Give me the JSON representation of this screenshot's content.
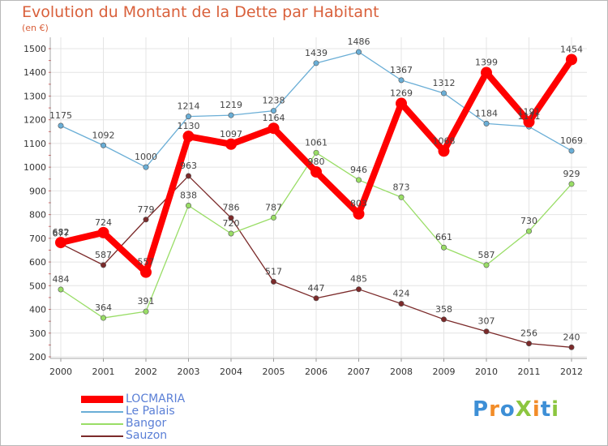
{
  "title": "Evolution du Montant de la Dette par Habitant",
  "subtitle": "(en €)",
  "logo": {
    "text": "ProXiti",
    "letters": [
      "P",
      "r",
      "o",
      "X",
      "i",
      "t",
      "i"
    ],
    "colors": [
      "#3d8fd6",
      "#f28c28",
      "#3d8fd6",
      "#8cc63f",
      "#f28c28",
      "#3d8fd6",
      "#8cc63f"
    ]
  },
  "chart_data": {
    "type": "line",
    "title": "Evolution du Montant de la Dette par Habitant",
    "subtitle": "(en €)",
    "xlabel": "",
    "ylabel": "",
    "x": [
      "2000",
      "2001",
      "2002",
      "2003",
      "2004",
      "2005",
      "2006",
      "2007",
      "2008",
      "2009",
      "2010",
      "2011",
      "2012"
    ],
    "ylim": [
      200,
      1500
    ],
    "yticks": [
      200,
      300,
      400,
      500,
      600,
      700,
      800,
      900,
      1000,
      1100,
      1200,
      1300,
      1400,
      1500
    ],
    "grid": true,
    "legend_position": "bottom-left",
    "series": [
      {
        "name": "LOCMARIA",
        "color": "#ff0000",
        "values": [
          682,
          724,
          557,
          1130,
          1097,
          1164,
          980,
          803,
          1269,
          1068,
          1399,
          1191,
          1454
        ]
      },
      {
        "name": "Le Palais",
        "color": "#6aaed6",
        "values": [
          1175,
          1092,
          1000,
          1214,
          1219,
          1238,
          1439,
          1486,
          1367,
          1312,
          1184,
          1171,
          1069
        ]
      },
      {
        "name": "Bangor",
        "color": "#99dd66",
        "values": [
          484,
          364,
          391,
          838,
          720,
          787,
          1061,
          946,
          873,
          661,
          587,
          730,
          929
        ]
      },
      {
        "name": "Sauzon",
        "color": "#7b2a2a",
        "values": [
          677,
          587,
          779,
          963,
          786,
          517,
          447,
          485,
          424,
          358,
          307,
          256,
          240
        ]
      }
    ]
  }
}
